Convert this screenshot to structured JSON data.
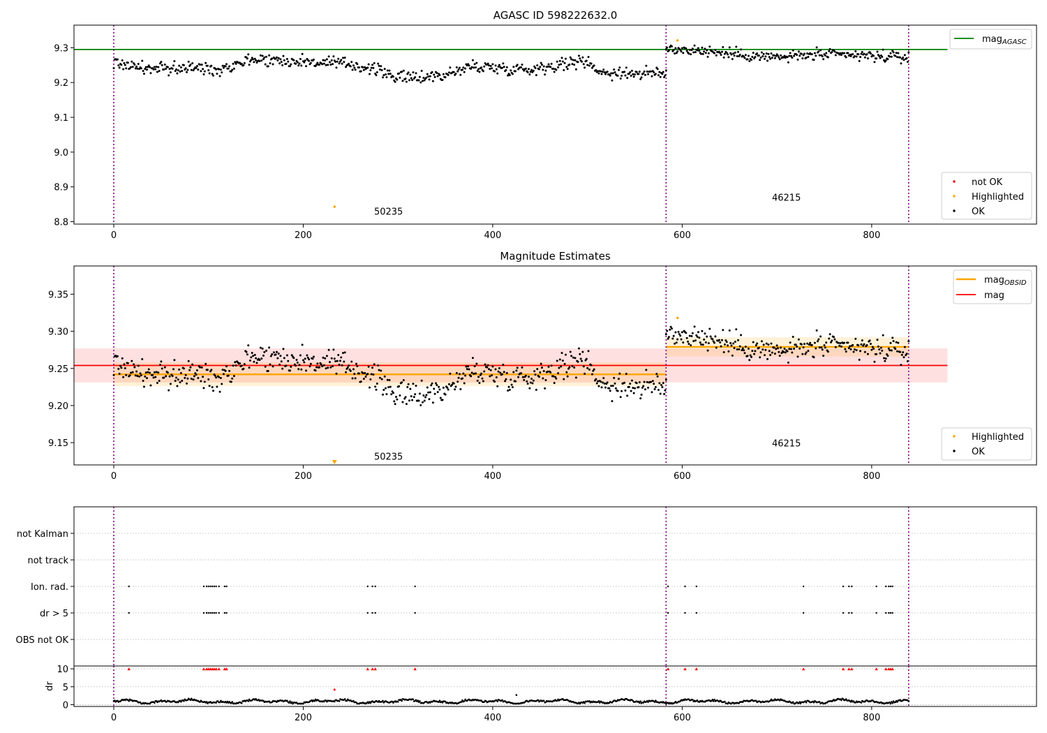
{
  "chart_data": [
    {
      "type": "scatter",
      "title": "AGASC ID 598222632.0",
      "xlim": [
        -42,
        974
      ],
      "ylim": [
        8.793,
        9.365
      ],
      "yticks": [
        8.8,
        8.9,
        9.0,
        9.1,
        9.2,
        9.3
      ],
      "xticks": [
        0,
        200,
        400,
        600,
        800
      ],
      "obs_boundaries": [
        0,
        583,
        839
      ],
      "obs_labels": [
        {
          "text": "50235",
          "x": 290,
          "y": 8.82
        },
        {
          "text": "46215",
          "x": 710,
          "y": 8.86
        }
      ],
      "lines": [
        {
          "name_main": "mag",
          "name_sub": "AGASC",
          "color": "#008000",
          "y": 9.295,
          "x_range": [
            -42,
            880
          ]
        }
      ],
      "series": [
        {
          "name": "not OK",
          "color": "#ff0000",
          "points": []
        },
        {
          "name": "Highlighted",
          "color": "#ffa500",
          "points": [
            [
              233,
              8.843
            ],
            [
              595,
              9.321
            ]
          ]
        },
        {
          "name": "OK",
          "color": "#000000",
          "segments": [
            {
              "x_start": 0,
              "x_end": 583,
              "knots": [
                [
                  0,
                  9.258
                ],
                [
                  40,
                  9.238
                ],
                [
                  80,
                  9.243
                ],
                [
                  110,
                  9.238
                ],
                [
                  145,
                  9.268
                ],
                [
                  185,
                  9.262
                ],
                [
                  215,
                  9.258
                ],
                [
                  250,
                  9.252
                ],
                [
                  275,
                  9.238
                ],
                [
                  305,
                  9.212
                ],
                [
                  350,
                  9.222
                ],
                [
                  380,
                  9.248
                ],
                [
                  410,
                  9.241
                ],
                [
                  440,
                  9.238
                ],
                [
                  470,
                  9.252
                ],
                [
                  500,
                  9.262
                ],
                [
                  515,
                  9.228
                ],
                [
                  550,
                  9.227
                ],
                [
                  583,
                  9.225
                ]
              ],
              "noise": 0.009
            },
            {
              "x_start": 583,
              "x_end": 839,
              "knots": [
                [
                  583,
                  9.298
                ],
                [
                  620,
                  9.292
                ],
                [
                  660,
                  9.28
                ],
                [
                  700,
                  9.272
                ],
                [
                  740,
                  9.28
                ],
                [
                  780,
                  9.278
                ],
                [
                  839,
                  9.272
                ]
              ],
              "noise": 0.008
            }
          ]
        }
      ],
      "legend_lines": [
        {
          "label_main": "mag",
          "label_sub": "AGASC"
        }
      ],
      "legend_points": [
        "not OK",
        "Highlighted",
        "OK"
      ]
    },
    {
      "type": "scatter",
      "title": "Magnitude Estimates",
      "xlim": [
        -42,
        974
      ],
      "ylim": [
        9.12,
        9.388
      ],
      "yticks": [
        9.15,
        9.2,
        9.25,
        9.3,
        9.35
      ],
      "xticks": [
        0,
        200,
        400,
        600,
        800
      ],
      "obs_boundaries": [
        0,
        583,
        839
      ],
      "obs_labels": [
        {
          "text": "50235",
          "x": 290,
          "y": 9.127
        },
        {
          "text": "46215",
          "x": 710,
          "y": 9.145
        }
      ],
      "mag_band": {
        "y": 9.254,
        "low": 9.231,
        "high": 9.277,
        "x_range": [
          -42,
          880
        ]
      },
      "obsid_segments": [
        {
          "x_start": 0,
          "x_end": 583,
          "y": 9.242,
          "low": 9.226,
          "high": 9.258
        },
        {
          "x_start": 583,
          "x_end": 839,
          "y": 9.279,
          "low": 9.266,
          "high": 9.292
        }
      ],
      "series": [
        {
          "name": "Highlighted",
          "color": "#ffa500",
          "points": [
            [
              595,
              9.318
            ]
          ],
          "offscale_marker_x": 233
        },
        {
          "name": "OK",
          "color": "#000000",
          "segments": [
            {
              "x_start": 0,
              "x_end": 583,
              "knots": [
                [
                  0,
                  9.258
                ],
                [
                  40,
                  9.238
                ],
                [
                  80,
                  9.243
                ],
                [
                  110,
                  9.238
                ],
                [
                  145,
                  9.268
                ],
                [
                  185,
                  9.262
                ],
                [
                  215,
                  9.258
                ],
                [
                  250,
                  9.252
                ],
                [
                  275,
                  9.238
                ],
                [
                  305,
                  9.212
                ],
                [
                  350,
                  9.222
                ],
                [
                  380,
                  9.248
                ],
                [
                  410,
                  9.241
                ],
                [
                  440,
                  9.238
                ],
                [
                  470,
                  9.252
                ],
                [
                  500,
                  9.262
                ],
                [
                  515,
                  9.228
                ],
                [
                  550,
                  9.227
                ],
                [
                  583,
                  9.225
                ]
              ],
              "noise": 0.009
            },
            {
              "x_start": 583,
              "x_end": 839,
              "knots": [
                [
                  583,
                  9.298
                ],
                [
                  620,
                  9.292
                ],
                [
                  660,
                  9.28
                ],
                [
                  700,
                  9.272
                ],
                [
                  740,
                  9.28
                ],
                [
                  780,
                  9.278
                ],
                [
                  839,
                  9.272
                ]
              ],
              "noise": 0.008
            }
          ]
        }
      ],
      "legend_lines": [
        {
          "label_main": "mag",
          "label_sub": "OBSID",
          "color": "#ffa500"
        },
        {
          "label_main": "mag",
          "label_sub": "",
          "color": "#ff0000"
        }
      ],
      "legend_points": [
        "Highlighted",
        "OK"
      ]
    },
    {
      "type": "scatter",
      "title": "",
      "xlim": [
        -42,
        974
      ],
      "xticks": [
        0,
        200,
        400,
        600,
        800
      ],
      "obs_boundaries": [
        0,
        583,
        839
      ],
      "flag_rows": [
        "not Kalman",
        "not track",
        "Ion. rad.",
        "dr > 5",
        "OBS not OK"
      ],
      "flag_points": {
        "Ion. rad.": [
          16,
          95,
          98,
          100,
          102,
          104,
          106,
          108,
          111,
          117,
          119,
          268,
          273,
          276,
          318,
          585,
          603,
          615,
          728,
          770,
          776,
          779,
          805,
          815,
          818,
          820,
          822
        ],
        "dr > 5": [
          16,
          95,
          98,
          100,
          102,
          104,
          106,
          108,
          111,
          117,
          119,
          268,
          273,
          276,
          318,
          585,
          603,
          615,
          728,
          770,
          776,
          779,
          805,
          815,
          818,
          820,
          822
        ]
      },
      "dr_panel": {
        "ylabel": "dr",
        "ylim": [
          -0.5,
          10.8
        ],
        "yticks": [
          0,
          5,
          10
        ],
        "clip_value": 10,
        "clipped_x": [
          16,
          95,
          98,
          100,
          102,
          104,
          106,
          108,
          111,
          117,
          119,
          268,
          273,
          276,
          318,
          585,
          603,
          615,
          728,
          770,
          776,
          779,
          805,
          815,
          818,
          820,
          822
        ],
        "highlighted_point": [
          233,
          4.2
        ],
        "outlier_points": [
          [
            425,
            2.7
          ]
        ],
        "typical_range": [
          0.3,
          1.8
        ]
      }
    }
  ]
}
